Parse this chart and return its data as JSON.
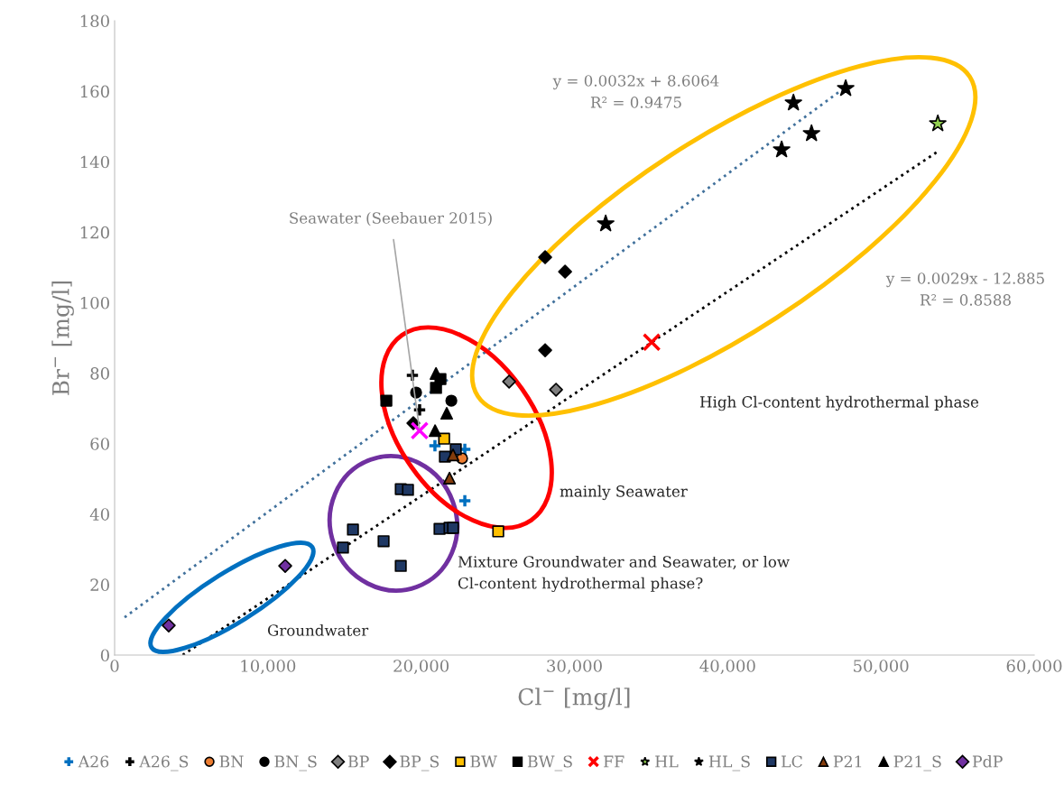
{
  "chart_data": {
    "type": "scatter",
    "xlabel": "Cl$^{−}$ [mg/l]",
    "ylabel": "Br$^{−}$ [mg/l]",
    "xlim": [
      0,
      60000
    ],
    "ylim": [
      0,
      180
    ],
    "xticks": [
      0,
      {
        "value": 10000,
        "label": "10,000"
      },
      {
        "value": 20000,
        "label": "20,000"
      },
      {
        "value": 30000,
        "label": "30,000"
      },
      {
        "value": 40000,
        "label": "40,000"
      },
      {
        "value": 50000,
        "label": "50,000"
      },
      {
        "value": 60000,
        "label": "60,000"
      }
    ],
    "yticks": [
      0,
      20,
      40,
      60,
      80,
      100,
      120,
      140,
      160,
      180
    ],
    "grid": false,
    "legend": "bottom",
    "series": [
      {
        "name": "A26",
        "color": "#0070c0",
        "marker": "plus",
        "x": [
          20900,
          22850,
          22850
        ],
        "values": [
          59.4,
          58.4,
          43.8
        ]
      },
      {
        "name": "A26_S",
        "color": "#000000",
        "marker": "plus",
        "x": [
          19430,
          19900
        ],
        "values": [
          79.4,
          69.6
        ]
      },
      {
        "name": "BN",
        "color": "#ed7d31",
        "marker": "circle",
        "x": [
          22670
        ],
        "values": [
          55.8
        ]
      },
      {
        "name": "BN_S",
        "color": "#000000",
        "marker": "circle",
        "x": [
          19670,
          21970
        ],
        "values": [
          74.5,
          72.2
        ]
      },
      {
        "name": "BP",
        "color": "#7f7f7f",
        "marker": "diamond",
        "x": [
          25740,
          28800
        ],
        "values": [
          77.6,
          75.3
        ]
      },
      {
        "name": "BP_S",
        "color": "#000000",
        "marker": "diamond",
        "x": [
          19490,
          28090,
          29390,
          28090
        ],
        "values": [
          65.8,
          112.9,
          108.8,
          86.5
        ]
      },
      {
        "name": "BW",
        "color": "#ffc000",
        "marker": "square",
        "x": [
          21500,
          25030
        ],
        "values": [
          61.4,
          35.1
        ]
      },
      {
        "name": "BW_S",
        "color": "#000000",
        "marker": "square",
        "x": [
          17730,
          21260,
          20970
        ],
        "values": [
          72.2,
          78.3,
          75.8
        ]
      },
      {
        "name": "FF",
        "color": "#ff0000",
        "marker": "cross",
        "x": [
          35040
        ],
        "values": [
          88.8
        ]
      },
      {
        "name": "HL",
        "color": "#92d050",
        "marker": "star",
        "x": [
          53710
        ],
        "values": [
          150.8
        ]
      },
      {
        "name": "HL_S",
        "color": "#000000",
        "marker": "star",
        "x": [
          32040,
          43520,
          44290,
          45470,
          47700
        ],
        "values": [
          122.4,
          143.4,
          156.7,
          148.0,
          160.8
        ]
      },
      {
        "name": "LC",
        "color": "#1f3864",
        "marker": "square",
        "x": [
          18670,
          19140,
          14900,
          15550,
          17550,
          18670,
          21200,
          21850,
          22080,
          21550,
          22260
        ],
        "values": [
          47.1,
          46.9,
          30.5,
          35.6,
          32.3,
          25.3,
          35.8,
          36.1,
          36.1,
          56.3,
          58.4
        ]
      },
      {
        "name": "P21",
        "color": "#843c0c",
        "marker": "triangle",
        "x": [
          22080,
          21850
        ],
        "values": [
          56.8,
          50.2
        ]
      },
      {
        "name": "P21_S",
        "color": "#000000",
        "marker": "triangle",
        "x": [
          20970,
          21670,
          20910
        ],
        "values": [
          79.9,
          68.6,
          63.7
        ]
      },
      {
        "name": "PdP",
        "color": "#7030a0",
        "marker": "diamond",
        "x": [
          3530,
          11130
        ],
        "values": [
          8.4,
          25.3
        ]
      },
      {
        "color": "#ff00ff",
        "marker": "cross",
        "x": [
          19900
        ],
        "values": [
          63.7
        ]
      },
      {
        "type": "line",
        "color": "#41719c",
        "line_style": "dotted",
        "x": [
          650,
          47700
        ],
        "values": [
          10.7,
          161.2
        ]
      },
      {
        "type": "line",
        "color": "#000000",
        "line_style": "dotted",
        "x": [
          4443,
          53710
        ],
        "values": [
          0,
          142.9
        ]
      }
    ],
    "annotations": [
      {
        "text": "Seawater (Seebauer 2015)",
        "x": 19900,
        "y": 63.7
      },
      "y = 0.0032x + 8.6064\nR² = 0.9475",
      "y = 0.0029x - 12.885\nR² = 0.8588",
      "High Cl-content hydrothermal phase",
      "mainly Seawater",
      "Mixture Groundwater and Seawater, or low\nCl-content hydrothermal phase?",
      "Groundwater"
    ]
  }
}
